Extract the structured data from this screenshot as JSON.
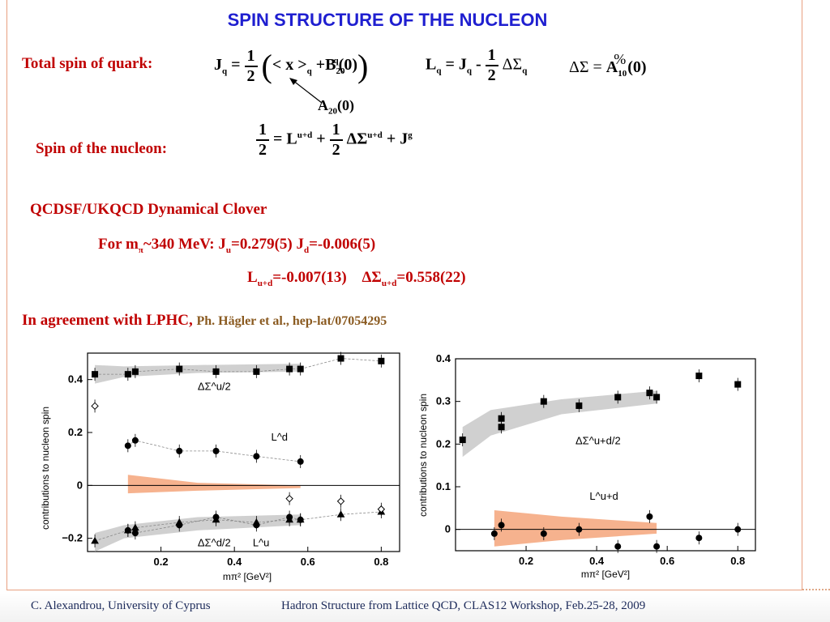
{
  "title": "SPIN STRUCTURE OF THE NUCLEON",
  "total_spin_label": "Total spin of quark:",
  "nucleon_spin_label": "Spin of the nucleon:",
  "a20_label": "A",
  "a20_sub": "20",
  "a20_arg": "(0)",
  "qcdsf_line": "QCDSF/UKQCD Dynamical Clover",
  "for_line": {
    "prefix": "For m",
    "pi": "π",
    "mass": "~340 MeV: J",
    "u_sub": "u",
    "ju_val": "=0.279(5) J",
    "d_sub": "d",
    "jd_val": "=-0.006(5)"
  },
  "l_line": {
    "l": "L",
    "l_sub": "u+d",
    "l_val": "=-0.007(13)",
    "ds": "ΔΣ",
    "ds_sub": "u+d",
    "ds_val": "=0.558(22)"
  },
  "agreement": {
    "main": "In agreement with LPHC,",
    "ref": "Ph. Hägler et al., hep-lat/07054295"
  },
  "footer": {
    "left": "C. Alexandrou,  University of Cyprus",
    "right": "Hadron Structure from Lattice QCD,  CLAS12 Workshop, Feb.25-28,  2009"
  },
  "colors": {
    "title": "#1f1fd0",
    "red": "#c00000",
    "band": "#f4a57a",
    "gray_band": "#c8c8c8"
  },
  "chart_data": [
    {
      "type": "scatter",
      "ylabel": "contributions to nucleon spin",
      "xlabel": "mπ² [GeV²]",
      "xlim": [
        0,
        0.85
      ],
      "ylim": [
        -0.25,
        0.5
      ],
      "xticks": [
        "0.2",
        "0.4",
        "0.6",
        "0.8"
      ],
      "yticks": [
        "−0.2",
        "0",
        "0.2",
        "0.4"
      ],
      "annotations": [
        "ΔΣ^u/2",
        "L^d",
        "ΔΣ^d/2",
        "L^u"
      ],
      "series": [
        {
          "name": "ΔΣ^u/2",
          "x": [
            0.02,
            0.11,
            0.13,
            0.25,
            0.35,
            0.46,
            0.55,
            0.58,
            0.69,
            0.8
          ],
          "y": [
            0.42,
            0.42,
            0.43,
            0.44,
            0.43,
            0.43,
            0.44,
            0.44,
            0.48,
            0.47
          ]
        },
        {
          "name": "L^d",
          "x": [
            0.11,
            0.13,
            0.25,
            0.35,
            0.46,
            0.58
          ],
          "y": [
            0.15,
            0.17,
            0.13,
            0.13,
            0.11,
            0.09
          ]
        },
        {
          "name": "ΔΣ^d/2",
          "x": [
            0.02,
            0.11,
            0.13,
            0.25,
            0.35,
            0.46,
            0.55,
            0.58,
            0.69,
            0.8
          ],
          "y": [
            -0.21,
            -0.17,
            -0.16,
            -0.14,
            -0.13,
            -0.14,
            -0.13,
            -0.13,
            -0.11,
            -0.1
          ]
        },
        {
          "name": "L^u",
          "x": [
            0.11,
            0.13,
            0.25,
            0.35,
            0.46,
            0.55,
            0.58
          ],
          "y": [
            -0.17,
            -0.18,
            -0.15,
            -0.12,
            -0.15,
            -0.12,
            -0.13
          ]
        },
        {
          "name": "open",
          "x": [
            0.02,
            0.55,
            0.69,
            0.8
          ],
          "y": [
            0.3,
            -0.05,
            -0.06,
            -0.09
          ]
        }
      ]
    },
    {
      "type": "scatter",
      "ylabel": "contributions to nucleon spin",
      "xlabel": "mπ² [GeV²]",
      "xlim": [
        0,
        0.85
      ],
      "ylim": [
        -0.05,
        0.4
      ],
      "xticks": [
        "0.2",
        "0.4",
        "0.6",
        "0.8"
      ],
      "yticks": [
        "0",
        "0.1",
        "0.2",
        "0.3",
        "0.4"
      ],
      "annotations": [
        "ΔΣ^u+d/2",
        "L^u+d"
      ],
      "series": [
        {
          "name": "ΔΣ^u+d/2",
          "x": [
            0.02,
            0.13,
            0.13,
            0.25,
            0.35,
            0.46,
            0.55,
            0.57,
            0.69,
            0.8
          ],
          "y": [
            0.21,
            0.24,
            0.26,
            0.3,
            0.29,
            0.31,
            0.32,
            0.31,
            0.36,
            0.34
          ]
        },
        {
          "name": "L^u+d",
          "x": [
            0.11,
            0.13,
            0.25,
            0.35,
            0.46,
            0.55,
            0.57,
            0.69,
            0.8
          ],
          "y": [
            -0.01,
            0.01,
            -0.01,
            0.0,
            -0.04,
            0.03,
            -0.04,
            -0.02,
            0.0
          ]
        }
      ]
    }
  ]
}
